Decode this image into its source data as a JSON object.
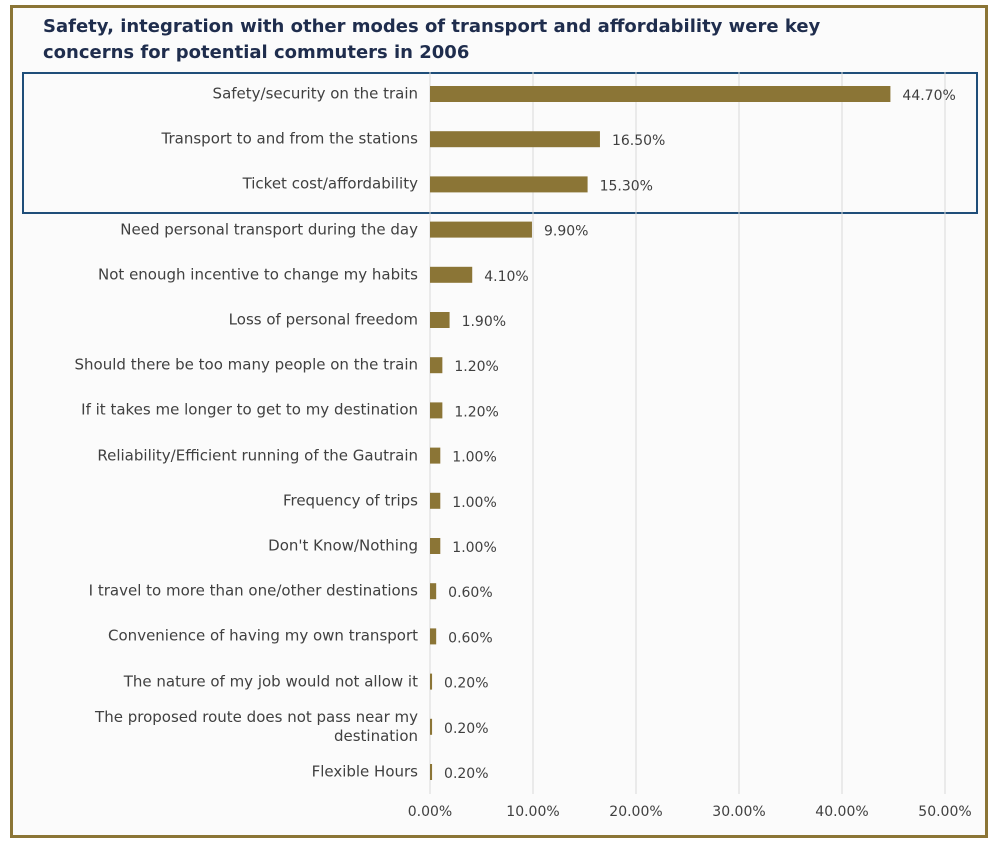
{
  "chart_data": {
    "type": "barh",
    "title": "Safety, integration with other modes of transport and affordability were key concerns for potential commuters in 2006",
    "categories": [
      "Safety/security on the train",
      "Transport to and from the stations",
      "Ticket cost/affordability",
      "Need personal transport during the day",
      "Not enough incentive to change my habits",
      "Loss of personal freedom",
      "Should there be too many people on the train",
      "If it takes me longer to get to my destination",
      "Reliability/Efficient running of the Gautrain",
      "Frequency of trips",
      "Don't Know/Nothing",
      "I travel to more than one/other destinations",
      "Convenience of having my own transport",
      "The nature of my job would not allow it",
      "The proposed route does not pass near my destination",
      "Flexible Hours"
    ],
    "values": [
      44.7,
      16.5,
      15.3,
      9.9,
      4.1,
      1.9,
      1.2,
      1.2,
      1.0,
      1.0,
      1.0,
      0.6,
      0.6,
      0.2,
      0.2,
      0.2
    ],
    "value_labels": [
      "44.70%",
      "16.50%",
      "15.30%",
      "9.90%",
      "4.10%",
      "1.90%",
      "1.20%",
      "1.20%",
      "1.00%",
      "1.00%",
      "1.00%",
      "0.60%",
      "0.60%",
      "0.20%",
      "0.20%",
      "0.20%"
    ],
    "color": "#8b7536",
    "xlim": [
      0,
      50
    ],
    "xticks": [
      {
        "value": 0,
        "label": "0.00%"
      },
      {
        "value": 10,
        "label": "10.00%"
      },
      {
        "value": 20,
        "label": "20.00%"
      },
      {
        "value": 30,
        "label": "30.00%"
      },
      {
        "value": 40,
        "label": "40.00%"
      },
      {
        "value": 50,
        "label": "50.00%"
      }
    ],
    "grid": true
  }
}
